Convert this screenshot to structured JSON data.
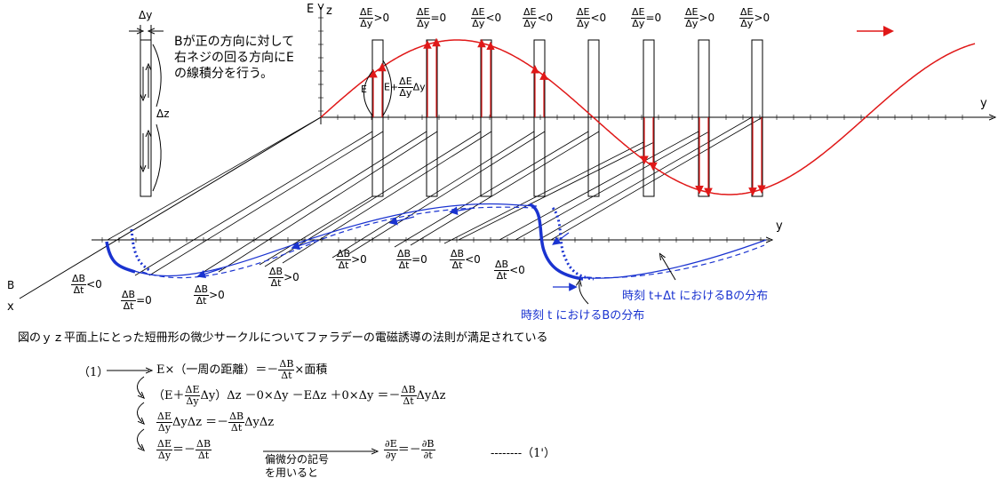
{
  "axes": {
    "e_axis": "E",
    "z_axis": "z",
    "y_axis_top": "y",
    "y_axis_bottom": "y",
    "b_axis": "B",
    "x_axis": "x"
  },
  "strip": {
    "dy": "Δy",
    "dz": "Δz",
    "E_left": "E",
    "E_right_prefix": "E+",
    "E_right_num": "ΔE",
    "E_right_den": "Δy",
    "E_right_suffix": "Δy"
  },
  "note_lines": [
    "Bが正の方向に対して",
    "右ネジの回る方向にE",
    "の線積分を行う。"
  ],
  "top_conditions": [
    {
      "num": "ΔE",
      "den": "Δy",
      "rel": ">0"
    },
    {
      "num": "ΔE",
      "den": "Δy",
      "rel": "=0"
    },
    {
      "num": "ΔE",
      "den": "Δy",
      "rel": "<0"
    },
    {
      "num": "ΔE",
      "den": "Δy",
      "rel": "<0"
    },
    {
      "num": "ΔE",
      "den": "Δy",
      "rel": "<0"
    },
    {
      "num": "ΔE",
      "den": "Δy",
      "rel": "=0"
    },
    {
      "num": "ΔE",
      "den": "Δy",
      "rel": ">0"
    },
    {
      "num": "ΔE",
      "den": "Δy",
      "rel": ">0"
    }
  ],
  "bottom_conditions": [
    {
      "num": "ΔB",
      "den": "Δt",
      "rel": "<0"
    },
    {
      "num": "ΔB",
      "den": "Δt",
      "rel": "=0"
    },
    {
      "num": "ΔB",
      "den": "Δt",
      "rel": ">0"
    },
    {
      "num": "ΔB",
      "den": "Δt",
      "rel": ">0"
    },
    {
      "num": "ΔB",
      "den": "Δt",
      "rel": ">0"
    },
    {
      "num": "ΔB",
      "den": "Δt",
      "rel": "=0"
    },
    {
      "num": "ΔB",
      "den": "Δt",
      "rel": "<0"
    },
    {
      "num": "ΔB",
      "den": "Δt",
      "rel": "<0"
    }
  ],
  "legend": {
    "later": "時刻 t+Δt におけるBの分布",
    "now": "時刻 t におけるBの分布"
  },
  "caption": "図のｙｚ平面上にとった短冊形の微少サークルについてファラデーの電磁誘導の法則が満足されている",
  "equations": {
    "label1": "（1）",
    "eq1_a": "E×（一周の距離）＝－",
    "eq1_num": "ΔB",
    "eq1_den": "Δt",
    "eq1_b": "×面積",
    "eq2_a": "（E＋",
    "eq2_num1": "ΔE",
    "eq2_den1": "Δy",
    "eq2_b": "Δy）Δz －0×Δy －EΔz ＋0×Δy ＝－",
    "eq2_num2": "ΔB",
    "eq2_den2": "Δt",
    "eq2_c": "ΔyΔz",
    "eq3_num1": "ΔE",
    "eq3_den1": "Δy",
    "eq3_a": "ΔyΔz ＝－",
    "eq3_num2": "ΔB",
    "eq3_den2": "Δt",
    "eq3_b": "ΔyΔz",
    "eq4_num1": "ΔE",
    "eq4_den1": "Δy",
    "eq4_a": "＝－",
    "eq4_num2": "ΔB",
    "eq4_den2": "Δt",
    "arrow_note_1": "偏微分の記号",
    "arrow_note_2": "を用いると",
    "eq5_num1": "∂E",
    "eq5_den1": "∂y",
    "eq5_a": "＝－",
    "eq5_num2": "∂B",
    "eq5_den2": "∂t",
    "label2": "--------（1'）"
  },
  "colors": {
    "e_wave": "#e01818",
    "b_wave": "#1a33d0",
    "grid": "#000000"
  }
}
